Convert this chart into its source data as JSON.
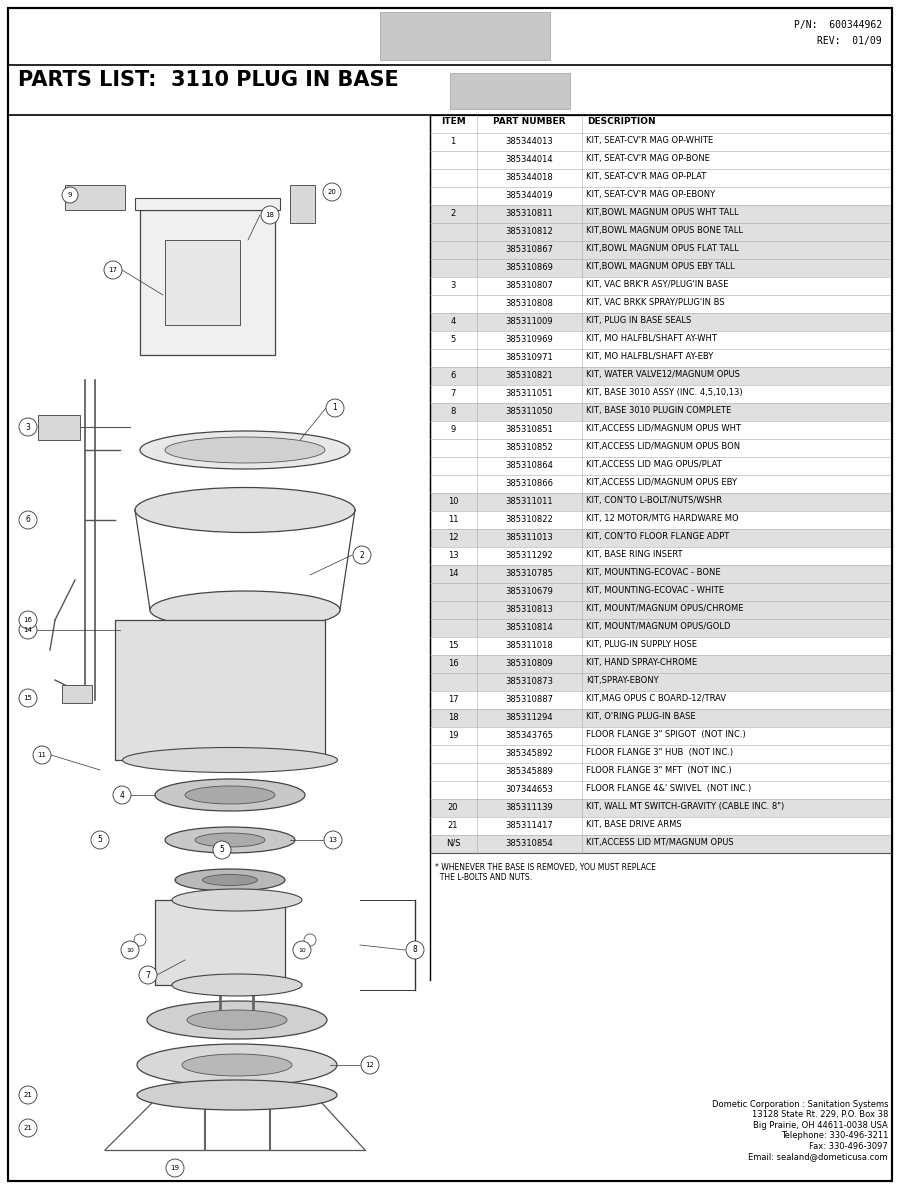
{
  "title": "PARTS LIST:  3110 PLUG IN BASE",
  "pn": "P/N:  600344962",
  "rev": "REV:  01/09",
  "bg_color": "#ffffff",
  "rows": [
    {
      "item": "1",
      "part": "385344013",
      "desc": "KIT, SEAT-CV'R MAG OP-WHITE",
      "shaded": false
    },
    {
      "item": "",
      "part": "385344014",
      "desc": "KIT, SEAT-CV'R MAG OP-BONE",
      "shaded": false
    },
    {
      "item": "",
      "part": "385344018",
      "desc": "KIT, SEAT-CV'R MAG OP-PLAT",
      "shaded": false
    },
    {
      "item": "",
      "part": "385344019",
      "desc": "KIT, SEAT-CV'R MAG OP-EBONY",
      "shaded": false
    },
    {
      "item": "2",
      "part": "385310811",
      "desc": "KIT,BOWL MAGNUM OPUS WHT TALL",
      "shaded": true
    },
    {
      "item": "",
      "part": "385310812",
      "desc": "KIT,BOWL MAGNUM OPUS BONE TALL",
      "shaded": true
    },
    {
      "item": "",
      "part": "385310867",
      "desc": "KIT,BOWL MAGNUM OPUS FLAT TALL",
      "shaded": true
    },
    {
      "item": "",
      "part": "385310869",
      "desc": "KIT,BOWL MAGNUM OPUS EBY TALL",
      "shaded": true
    },
    {
      "item": "3",
      "part": "385310807",
      "desc": "KIT, VAC BRK'R ASY/PLUG'IN BASE",
      "shaded": false
    },
    {
      "item": "",
      "part": "385310808",
      "desc": "KIT, VAC BRKK SPRAY/PLUG'IN BS",
      "shaded": false
    },
    {
      "item": "4",
      "part": "385311009",
      "desc": "KIT, PLUG IN BASE SEALS",
      "shaded": true
    },
    {
      "item": "5",
      "part": "385310969",
      "desc": "KIT, MO HALFBL/SHAFT AY-WHT",
      "shaded": false
    },
    {
      "item": "",
      "part": "385310971",
      "desc": "KIT, MO HALFBL/SHAFT AY-EBY",
      "shaded": false
    },
    {
      "item": "6",
      "part": "385310821",
      "desc": "KIT, WATER VALVE12/MAGNUM OPUS",
      "shaded": true
    },
    {
      "item": "7",
      "part": "385311051",
      "desc": "KIT, BASE 3010 ASSY (INC. 4,5,10,13)",
      "shaded": false
    },
    {
      "item": "8",
      "part": "385311050",
      "desc": "KIT, BASE 3010 PLUGIN COMPLETE",
      "shaded": true
    },
    {
      "item": "9",
      "part": "385310851",
      "desc": "KIT,ACCESS LID/MAGNUM OPUS WHT",
      "shaded": false
    },
    {
      "item": "",
      "part": "385310852",
      "desc": "KIT,ACCESS LID/MAGNUM OPUS BON",
      "shaded": false
    },
    {
      "item": "",
      "part": "385310864",
      "desc": "KIT,ACCESS LID MAG OPUS/PLAT",
      "shaded": false
    },
    {
      "item": "",
      "part": "385310866",
      "desc": "KIT,ACCESS LID/MAGNUM OPUS EBY",
      "shaded": false
    },
    {
      "item": "10",
      "part": "385311011",
      "desc": "KIT, CON'TO L-BOLT/NUTS/WSHR",
      "shaded": true
    },
    {
      "item": "11",
      "part": "385310822",
      "desc": "KIT, 12 MOTOR/MTG HARDWARE MO",
      "shaded": false
    },
    {
      "item": "12",
      "part": "385311013",
      "desc": "KIT, CON'TO FLOOR FLANGE ADPT",
      "shaded": true
    },
    {
      "item": "13",
      "part": "385311292",
      "desc": "KIT, BASE RING INSERT",
      "shaded": false
    },
    {
      "item": "14",
      "part": "385310785",
      "desc": "KIT, MOUNTING-ECOVAC - BONE",
      "shaded": true
    },
    {
      "item": "",
      "part": "385310679",
      "desc": "KIT, MOUNTING-ECOVAC - WHITE",
      "shaded": true
    },
    {
      "item": "",
      "part": "385310813",
      "desc": "KIT, MOUNT/MAGNUM OPUS/CHROME",
      "shaded": true
    },
    {
      "item": "",
      "part": "385310814",
      "desc": "KIT, MOUNT/MAGNUM OPUS/GOLD",
      "shaded": true
    },
    {
      "item": "15",
      "part": "385311018",
      "desc": "KIT, PLUG-IN SUPPLY HOSE",
      "shaded": false
    },
    {
      "item": "16",
      "part": "385310809",
      "desc": "KIT, HAND SPRAY-CHROME",
      "shaded": true
    },
    {
      "item": "",
      "part": "385310873",
      "desc": "KIT,SPRAY-EBONY",
      "shaded": true
    },
    {
      "item": "17",
      "part": "385310887",
      "desc": "KIT,MAG OPUS C BOARD-12/TRAV",
      "shaded": false
    },
    {
      "item": "18",
      "part": "385311294",
      "desc": "KIT, O'RING PLUG-IN BASE",
      "shaded": true
    },
    {
      "item": "19",
      "part": "385343765",
      "desc": "FLOOR FLANGE 3\" SPIGOT  (NOT INC.)",
      "shaded": false
    },
    {
      "item": "",
      "part": "385345892",
      "desc": "FLOOR FLANGE 3\" HUB  (NOT INC.)",
      "shaded": false
    },
    {
      "item": "",
      "part": "385345889",
      "desc": "FLOOR FLANGE 3\" MFT  (NOT INC.)",
      "shaded": false
    },
    {
      "item": "",
      "part": "307344653",
      "desc": "FLOOR FLANGE 4&' SWIVEL  (NOT INC.)",
      "shaded": false
    },
    {
      "item": "20",
      "part": "385311139",
      "desc": "KIT, WALL MT SWITCH-GRAVITY (CABLE INC. 8\")",
      "shaded": true
    },
    {
      "item": "21",
      "part": "385311417",
      "desc": "KIT, BASE DRIVE ARMS",
      "shaded": false
    },
    {
      "item": "N/S",
      "part": "385310854",
      "desc": "KIT,ACCESS LID MT/MAGNUM OPUS",
      "shaded": true
    }
  ],
  "footer_note": "* WHENEVER THE BASE IS REMOVED, YOU MUST REPLACE\n  THE L-BOLTS AND NUTS.",
  "company_info": "Dometic Corporation : Sanitation Systems\n13128 State Rt. 229, P.O. Box 38\nBig Prairie, OH 44611-0038 USA\nTelephone: 330-496-3211\nFax: 330-496-3097\nEmail: sealand@dometicusa.com"
}
